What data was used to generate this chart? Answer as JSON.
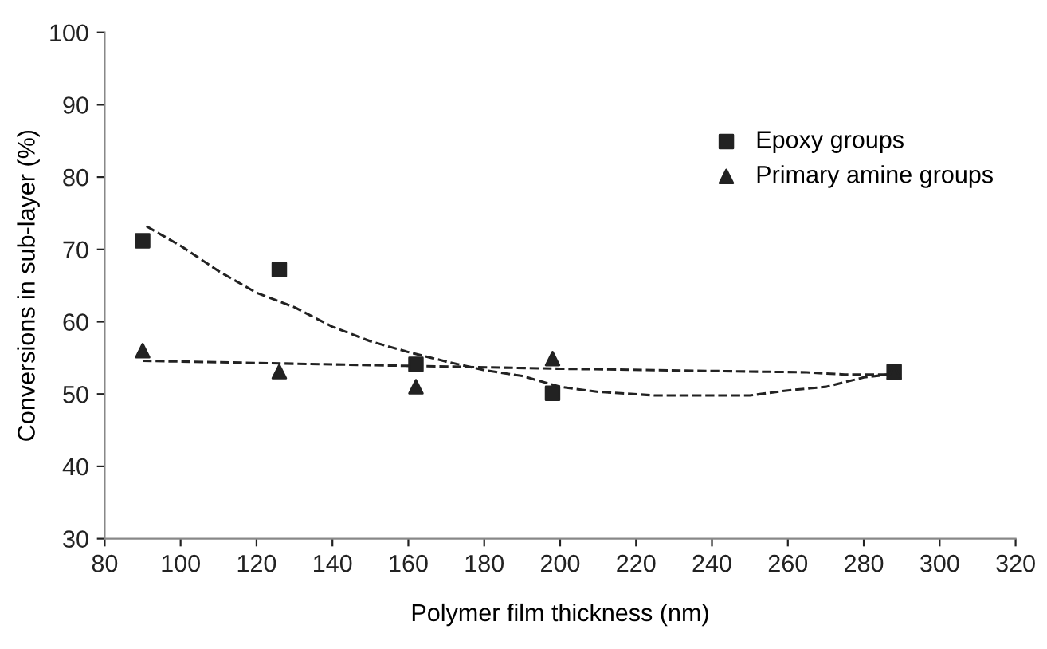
{
  "chart_data": {
    "type": "scatter",
    "xlabel": "Polymer film thickness (nm)",
    "ylabel": "Conversions in sub-layer (%)",
    "xlim": [
      80,
      320
    ],
    "xticks": [
      80,
      100,
      120,
      140,
      160,
      180,
      200,
      220,
      240,
      260,
      280,
      300,
      320
    ],
    "ylim": [
      30,
      100
    ],
    "yticks": [
      30,
      40,
      50,
      60,
      70,
      80,
      90,
      100
    ],
    "grid": false,
    "legend": "top right",
    "series": [
      {
        "name": "Epoxy groups",
        "color": "#222222",
        "marker": "square",
        "x": [
          90,
          126,
          162,
          198,
          288
        ],
        "values": [
          71.2,
          67.2,
          54.1,
          50.1,
          53.1
        ]
      },
      {
        "name": "Primary amine groups",
        "color": "#222222",
        "marker": "triangle",
        "x": [
          90,
          126,
          162,
          198,
          288
        ],
        "values": [
          56.0,
          53.1,
          51.0,
          54.9,
          53.0
        ]
      },
      {
        "type": "line",
        "color": "#222222",
        "line_style": "dashed",
        "marker": "none",
        "x": [
          91,
          100,
          110,
          120,
          130,
          140,
          150,
          160,
          170,
          180,
          190,
          200,
          210,
          225,
          250,
          260,
          270,
          280,
          288
        ],
        "values": [
          73.2,
          70.5,
          67.0,
          64.0,
          62.0,
          59.3,
          57.3,
          55.8,
          54.5,
          53.3,
          52.5,
          51.0,
          50.3,
          49.8,
          49.8,
          50.5,
          51.0,
          52.3,
          52.8
        ]
      },
      {
        "type": "line",
        "color": "#222222",
        "line_style": "dashed",
        "marker": "none",
        "x": [
          90,
          150,
          200,
          265,
          275,
          288
        ],
        "values": [
          54.6,
          54.0,
          53.5,
          53.0,
          52.7,
          52.7
        ]
      }
    ]
  }
}
